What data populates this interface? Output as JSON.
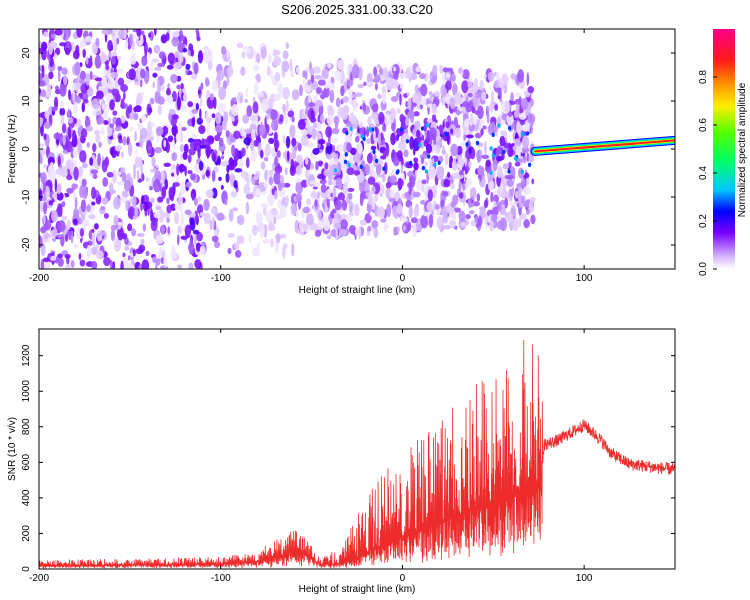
{
  "title": "S206.2025.331.00.33.C20",
  "chart_data": [
    {
      "type": "heatmap",
      "xlabel": "Height of straight line (km)",
      "ylabel": "Frequency (Hz)",
      "xlim": [
        -200,
        150
      ],
      "ylim": [
        -25,
        25
      ],
      "xticks": [
        -200,
        -100,
        0,
        100
      ],
      "yticks": [
        -20,
        -10,
        0,
        10,
        20
      ],
      "colorbar": {
        "label": "Normalized spectral amplitude",
        "range": [
          0,
          1
        ],
        "ticks": [
          0.0,
          0.2,
          0.4,
          0.6,
          0.8
        ]
      },
      "features": [
        {
          "label": "scattered noise",
          "x_range": [
            -200,
            70
          ],
          "freq_spread_hz": 25,
          "amplitude": 0.1
        },
        {
          "label": "narrowband line",
          "x_range": [
            73,
            150
          ],
          "freq_start_hz": -0.5,
          "freq_end_hz": 1.8,
          "amplitude": 0.95
        }
      ]
    },
    {
      "type": "line",
      "xlabel": "Height of straight line (km)",
      "ylabel": "SNR (10 * v/v)",
      "xlim": [
        -200,
        150
      ],
      "ylim": [
        0,
        1350
      ],
      "xticks": [
        -200,
        -100,
        0,
        100
      ],
      "yticks": [
        0,
        200,
        400,
        600,
        800,
        1000,
        1200
      ],
      "color": "#ee2b2b",
      "profile": {
        "x": [
          -200,
          -150,
          -100,
          -80,
          -65,
          -58,
          -52,
          -45,
          -35,
          -25,
          -15,
          0,
          20,
          40,
          60,
          70,
          76,
          78,
          85,
          95,
          100,
          108,
          115,
          125,
          140,
          150
        ],
        "base": [
          20,
          22,
          28,
          40,
          80,
          110,
          70,
          25,
          30,
          60,
          120,
          180,
          260,
          340,
          420,
          470,
          500,
          700,
          720,
          780,
          810,
          740,
          650,
          590,
          570,
          560
        ],
        "peak": [
          50,
          60,
          70,
          100,
          200,
          230,
          160,
          60,
          120,
          300,
          500,
          700,
          850,
          1050,
          1200,
          1340,
          1250,
          750,
          760,
          820,
          840,
          770,
          680,
          620,
          600,
          590
        ]
      }
    }
  ]
}
